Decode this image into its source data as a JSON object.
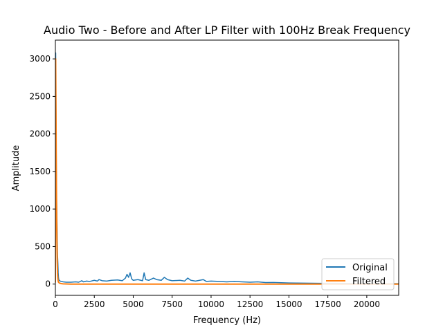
{
  "chart_data": {
    "type": "line",
    "title": "Audio Two - Before and After LP Filter with 100Hz Break Frequency",
    "xlabel": "Frequency (Hz)",
    "ylabel": "Amplitude",
    "xlim": [
      0,
      22050
    ],
    "ylim": [
      -150,
      3250
    ],
    "x_ticks": [
      0,
      2500,
      5000,
      7500,
      10000,
      12500,
      15000,
      17500,
      20000
    ],
    "y_ticks": [
      0,
      500,
      1000,
      1500,
      2000,
      2500,
      3000
    ],
    "x_tick_labels": [
      "0",
      "2500",
      "5000",
      "7500",
      "10000",
      "12500",
      "15000",
      "17500",
      "20000"
    ],
    "y_tick_labels": [
      "0",
      "500",
      "1000",
      "1500",
      "2000",
      "2500",
      "3000"
    ],
    "grid": false,
    "legend_position": "lower-right",
    "series": [
      {
        "name": "Original",
        "color": "#1f77b4",
        "x": [
          0,
          20,
          40,
          60,
          80,
          100,
          120,
          140,
          160,
          180,
          200,
          220,
          250,
          300,
          400,
          500,
          700,
          1000,
          1300,
          1500,
          1700,
          1800,
          2000,
          2200,
          2500,
          2700,
          2800,
          3000,
          3300,
          3600,
          4000,
          4300,
          4500,
          4600,
          4700,
          4800,
          4900,
          5000,
          5300,
          5600,
          5700,
          5800,
          6000,
          6300,
          6500,
          6800,
          7000,
          7200,
          7500,
          8000,
          8300,
          8500,
          8700,
          9000,
          9500,
          9700,
          10000,
          10500,
          11000,
          11500,
          12000,
          12500,
          13000,
          13500,
          14000,
          15000,
          16000,
          17000,
          18000,
          19000,
          20000,
          21000,
          22050
        ],
        "y": [
          20,
          3080,
          2300,
          1600,
          1100,
          900,
          600,
          380,
          280,
          150,
          90,
          60,
          50,
          40,
          35,
          30,
          25,
          25,
          30,
          25,
          45,
          30,
          40,
          35,
          50,
          40,
          60,
          45,
          40,
          50,
          55,
          45,
          80,
          130,
          90,
          150,
          70,
          50,
          60,
          45,
          150,
          60,
          50,
          80,
          60,
          50,
          90,
          60,
          45,
          50,
          40,
          80,
          50,
          40,
          60,
          35,
          40,
          35,
          30,
          35,
          30,
          25,
          30,
          20,
          22,
          15,
          12,
          10,
          10,
          8,
          8,
          6,
          5
        ]
      },
      {
        "name": "Filtered",
        "color": "#ff7f0e",
        "x": [
          0,
          20,
          40,
          60,
          80,
          100,
          120,
          140,
          160,
          180,
          200,
          250,
          300,
          400,
          500,
          1000,
          2000,
          5000,
          10000,
          15000,
          20000,
          22050
        ],
        "y": [
          20,
          3000,
          2250,
          1500,
          1000,
          600,
          300,
          130,
          70,
          40,
          25,
          15,
          10,
          5,
          3,
          0,
          0,
          0,
          0,
          0,
          0,
          0
        ]
      }
    ]
  }
}
